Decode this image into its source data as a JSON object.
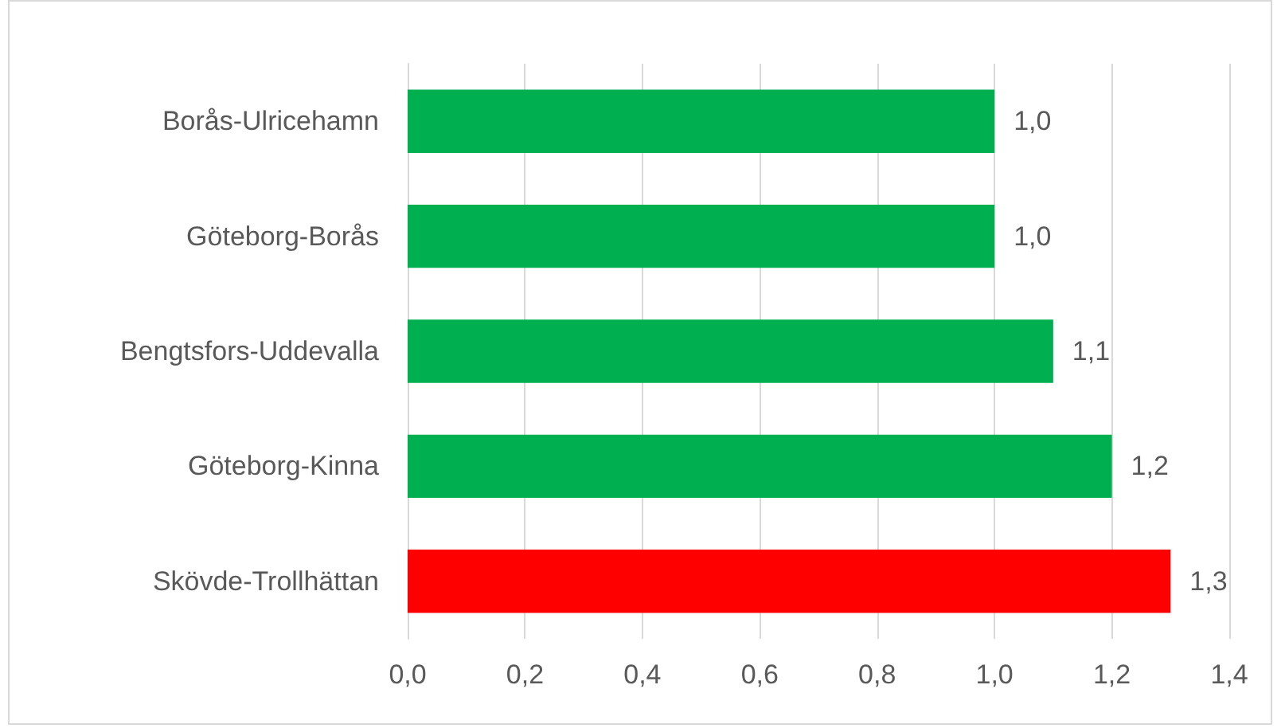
{
  "chart_data": {
    "type": "bar",
    "orientation": "horizontal",
    "categories": [
      "Borås-Ulricehamn",
      "Göteborg-Borås",
      "Bengtsfors-Uddevalla",
      "Göteborg-Kinna",
      "Skövde-Trollhättan"
    ],
    "values": [
      1.0,
      1.0,
      1.1,
      1.2,
      1.3
    ],
    "value_labels": [
      "1,0",
      "1,0",
      "1,1",
      "1,2",
      "1,3"
    ],
    "colors": [
      "#00b050",
      "#00b050",
      "#00b050",
      "#00b050",
      "#ff0000"
    ],
    "xlim": [
      0,
      1.4
    ],
    "xticks": [
      {
        "value": 0,
        "label": "0,0"
      },
      {
        "value": 0.2,
        "label": "0,2"
      },
      {
        "value": 0.4,
        "label": "0,4"
      },
      {
        "value": 0.6,
        "label": "0,6"
      },
      {
        "value": 0.8,
        "label": "0,8"
      },
      {
        "value": 1.0,
        "label": "1,0"
      },
      {
        "value": 1.2,
        "label": "1,2"
      },
      {
        "value": 1.4,
        "label": "1,4"
      }
    ],
    "grid": "x"
  }
}
